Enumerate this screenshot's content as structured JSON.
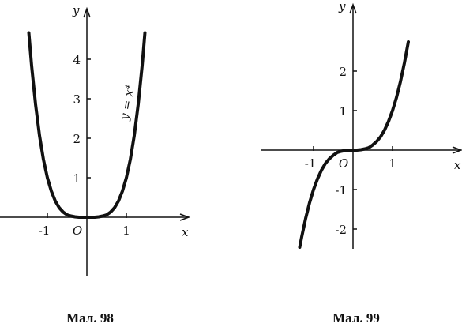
{
  "chart_data": [
    {
      "type": "line",
      "x_label": "x",
      "y_label": "y",
      "origin_label": "O",
      "annotation": "y = x⁴",
      "caption": "Мал. 98",
      "x": [
        -1.47,
        -1.4,
        -1.3,
        -1.2,
        -1.1,
        -1.0,
        -0.9,
        -0.8,
        -0.7,
        -0.6,
        -0.5,
        -0.4,
        -0.3,
        -0.2,
        -0.1,
        0,
        0.1,
        0.2,
        0.3,
        0.4,
        0.5,
        0.6,
        0.7,
        0.8,
        0.9,
        1.0,
        1.1,
        1.2,
        1.3,
        1.4,
        1.47
      ],
      "values": [
        4.67,
        3.84,
        2.86,
        2.07,
        1.46,
        1,
        0.66,
        0.41,
        0.24,
        0.13,
        0.06,
        0.03,
        0.01,
        0,
        0,
        0,
        0,
        0,
        0.01,
        0.03,
        0.06,
        0.13,
        0.24,
        0.41,
        0.66,
        1,
        1.46,
        2.07,
        2.86,
        3.84,
        4.67
      ],
      "color": "#111111",
      "xlim": [
        -2.2,
        2.6
      ],
      "ylim": [
        -1.5,
        5.3
      ],
      "xticks": [
        -1,
        1
      ],
      "yticks": [
        1,
        2,
        3,
        4
      ]
    },
    {
      "type": "line",
      "x_label": "x",
      "y_label": "y",
      "origin_label": "O",
      "caption": "Мал. 99",
      "x": [
        -1.35,
        -1.3,
        -1.2,
        -1.1,
        -1.0,
        -0.9,
        -0.8,
        -0.7,
        -0.6,
        -0.5,
        -0.4,
        -0.3,
        -0.2,
        -0.1,
        0,
        0.1,
        0.2,
        0.3,
        0.4,
        0.5,
        0.6,
        0.7,
        0.8,
        0.9,
        1.0,
        1.1,
        1.2,
        1.3,
        1.4
      ],
      "values": [
        -2.46,
        -2.2,
        -1.73,
        -1.33,
        -1,
        -0.73,
        -0.51,
        -0.34,
        -0.22,
        -0.13,
        -0.06,
        -0.03,
        -0.01,
        0,
        0,
        0,
        0.01,
        0.03,
        0.06,
        0.13,
        0.22,
        0.34,
        0.51,
        0.73,
        1,
        1.33,
        1.73,
        2.2,
        2.74
      ],
      "color": "#111111",
      "xlim": [
        -2.34,
        2.76
      ],
      "ylim": [
        -2.5,
        3.7
      ],
      "xticks": [
        -1,
        1
      ],
      "yticks": [
        -2,
        -1,
        1,
        2
      ]
    }
  ]
}
